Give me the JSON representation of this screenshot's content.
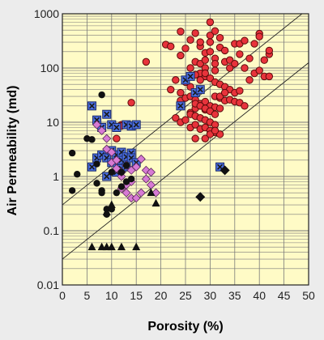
{
  "chart_data": {
    "type": "scatter",
    "title": "",
    "xlabel": "Porosity (%)",
    "ylabel": "Air Permeability (md)",
    "xlim": [
      0,
      50
    ],
    "ylim": [
      0.01,
      1000
    ],
    "y_scale": "log",
    "grid": true,
    "x_ticks": [
      0,
      5,
      10,
      15,
      20,
      25,
      30,
      35,
      40,
      45,
      50
    ],
    "y_ticks": [
      "0.01",
      "0.1",
      "1",
      "10",
      "100",
      "1000"
    ],
    "colors": {
      "plot_background": "#fffbc6",
      "page_background": "#ececec",
      "red_circle": "#e8333b",
      "blue_square": "#4a6ee0",
      "pink_diamond": "#d77ad4",
      "black": "#111111",
      "grid": "#7a7a7a"
    },
    "trend_lines": [
      {
        "x": [
          0,
          50
        ],
        "y": [
          0.3,
          1250
        ]
      },
      {
        "x": [
          0,
          50
        ],
        "y": [
          0.03,
          125
        ]
      }
    ],
    "series": [
      {
        "marker": "circle-red",
        "x": [
          17,
          21,
          22,
          24,
          24,
          25,
          26,
          26,
          27,
          27,
          28,
          28,
          28,
          28,
          29,
          29,
          29,
          29,
          30,
          30,
          30,
          30,
          31,
          31,
          31,
          31,
          32,
          32,
          33,
          33,
          34,
          34,
          35,
          35,
          36,
          36,
          37,
          37,
          38,
          39,
          40,
          40,
          41,
          42,
          42,
          22,
          23,
          24,
          25,
          26,
          27,
          28,
          29,
          30,
          31,
          32,
          33,
          34,
          35,
          36,
          24,
          25,
          26,
          27,
          28,
          29,
          30,
          31,
          32,
          33,
          26,
          27,
          28,
          29,
          30,
          31,
          32,
          23,
          24,
          25,
          26,
          27,
          28,
          29,
          30,
          31,
          26,
          27,
          28,
          29,
          30,
          31,
          32,
          29,
          30,
          31,
          27,
          28,
          29,
          30,
          31,
          32,
          33,
          34,
          35,
          36,
          37,
          38,
          39,
          40,
          41,
          42,
          14,
          15,
          10,
          11,
          12,
          12,
          27
        ],
        "y": [
          130,
          270,
          250,
          170,
          470,
          230,
          330,
          100,
          440,
          130,
          250,
          300,
          120,
          80,
          190,
          140,
          100,
          70,
          700,
          400,
          300,
          200,
          480,
          150,
          120,
          90,
          360,
          240,
          210,
          130,
          140,
          100,
          280,
          120,
          280,
          180,
          320,
          100,
          150,
          280,
          430,
          380,
          140,
          180,
          210,
          40,
          60,
          35,
          55,
          45,
          75,
          60,
          80,
          65,
          55,
          50,
          45,
          40,
          35,
          38,
          25,
          28,
          30,
          26,
          22,
          24,
          20,
          30,
          28,
          25,
          15,
          18,
          20,
          17,
          16,
          19,
          18,
          12,
          10,
          11,
          14,
          13,
          12,
          11,
          10,
          9,
          8,
          9,
          7.5,
          8,
          7,
          6.5,
          6,
          5,
          6,
          7,
          22,
          20,
          18,
          16,
          14,
          30,
          35,
          26,
          24,
          23,
          20,
          60,
          80,
          90,
          70,
          70,
          23,
          9,
          9,
          5,
          9,
          8.5,
          5
        ],
        "name": ""
      },
      {
        "marker": "square-blue",
        "x": [
          6,
          6,
          7,
          7,
          8,
          8,
          9,
          9,
          9,
          10,
          10,
          10,
          11,
          11,
          11,
          12,
          12,
          12,
          13,
          13,
          13,
          14,
          14,
          14,
          15,
          15,
          24,
          25,
          26,
          27,
          28,
          32
        ],
        "y": [
          20,
          1.5,
          11,
          2.2,
          8,
          2.5,
          14,
          1,
          2.2,
          9,
          1.8,
          3,
          8,
          2.5,
          1.2,
          2,
          2.8,
          1.4,
          9,
          2.3,
          1.5,
          8.5,
          2.7,
          2.2,
          9,
          1.8,
          20,
          60,
          70,
          35,
          40,
          1.5
        ],
        "name": ""
      },
      {
        "marker": "diamond-pink",
        "x": [
          7,
          8,
          9,
          9,
          10,
          10,
          11,
          11,
          12,
          12,
          12,
          13,
          13,
          13,
          14,
          14,
          14,
          15,
          15,
          16,
          16,
          17,
          17,
          18,
          18,
          19
        ],
        "y": [
          9,
          7,
          5,
          3.2,
          2.8,
          1.8,
          1.4,
          2,
          1,
          1.2,
          0.6,
          1.6,
          0.7,
          0.5,
          1.3,
          0.4,
          0.8,
          1.5,
          0.4,
          2.1,
          0.5,
          1.3,
          0.9,
          0.7,
          1.2,
          0.5
        ],
        "name": ""
      },
      {
        "marker": "circle-black",
        "x": [
          2,
          2,
          3,
          5,
          6,
          7,
          7,
          8,
          8,
          9,
          9,
          10,
          10,
          11,
          12,
          12,
          13,
          13,
          14,
          8
        ],
        "y": [
          0.55,
          2.7,
          1.1,
          5,
          4.8,
          1.7,
          0.75,
          32,
          0.55,
          0.25,
          0.2,
          0.25,
          1.2,
          0.5,
          1.2,
          0.65,
          1.6,
          0.8,
          0.9,
          0.5
        ],
        "name": ""
      },
      {
        "marker": "triangle-black",
        "x": [
          6,
          8,
          9,
          10,
          12,
          15,
          9,
          10,
          18,
          19
        ],
        "y": [
          0.05,
          0.05,
          0.05,
          0.05,
          0.05,
          0.05,
          0.22,
          0.3,
          0.5,
          0.32
        ],
        "name": ""
      },
      {
        "marker": "diamond-black",
        "x": [
          28,
          33
        ],
        "y": [
          0.42,
          1.3
        ],
        "name": ""
      }
    ]
  }
}
